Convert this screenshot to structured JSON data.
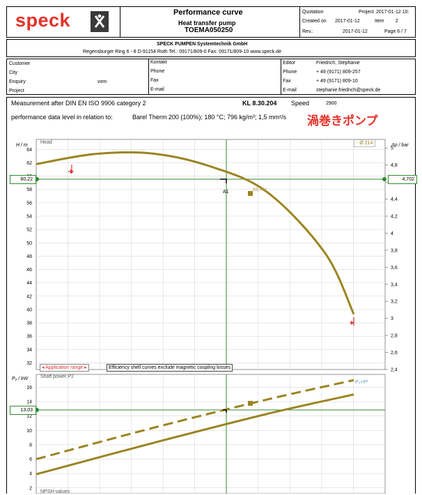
{
  "header": {
    "logo": "speck",
    "title": "Performance curve",
    "subtitle": "Heat transfer pump",
    "doc_id": "TOEMA050250",
    "quotation_label": "Quotation",
    "project_label": "Project",
    "project_value": "2017-01-12 10:",
    "created_label": "Created on",
    "created_value": "2017-01-12",
    "item_label": "Item",
    "item_value": "2",
    "rev_label": "Rev.:",
    "rev_value": "2017-01-12",
    "page_label": "Page 6 / 7"
  },
  "company": {
    "name": "SPECK PUMPEN Systemtechnik GmbH",
    "address": "Regensburger Ring 6 - 8   D-91154 Roth   Tel.: 09171/809-0   Fax: 09171/809-10   www.speck.de"
  },
  "info": {
    "customer": "Customer",
    "city": "City",
    "enquiry": "Enquiry",
    "enquiry_vom": "vom",
    "project": "Project",
    "kontakt": "Kontakt",
    "phone": "Phone",
    "fax": "Fax",
    "email": "E-mail",
    "editor": "Editor",
    "editor_value": "Friedrich, Stephanie",
    "phone2": "Phone",
    "phone2_value": "+ 49 (9171) 809-257",
    "fax2": "Fax",
    "fax2_value": "+ 49 (9171) 809-10",
    "email2": "E-mail",
    "email2_value": "stephanie.friedrich@speck.de"
  },
  "measurement": {
    "text": "Measurement after DIN EN ISO 9906 category 2",
    "kl": "KL 8.30.204",
    "speed_label": "Speed",
    "speed_value": "2900",
    "perf_label": "performance data level in relation to:",
    "perf_value": "Barel Therm 200 (100%); 180 °C; 796 kg/m³; 1,5 mm²/s",
    "jp_label": "渦巻きポンプ"
  },
  "chart_head": {
    "ylabel_left": "H / m",
    "ylabel_right": "Δp / bar",
    "curve_label": "Head",
    "legend": "- Ø 214",
    "op_left": "60,22",
    "op_right": "4,702",
    "eff_label": "68,4%",
    "point_label": "A1",
    "app_range": "Application range",
    "note": "Efficiency shell curves exclude magnetic coupling losses",
    "yticks_left": [
      "64",
      "62",
      "60",
      "58",
      "56",
      "54",
      "52",
      "50",
      "48",
      "46",
      "44",
      "42",
      "40",
      "38",
      "36",
      "34",
      "32"
    ],
    "yticks_right": [
      "5",
      "4,8",
      "4,6",
      "4,4",
      "4,2",
      "4",
      "3,8",
      "3,6",
      "3,4",
      "3,2",
      "3",
      "2,8",
      "2,6",
      "2,4"
    ]
  },
  "chart_power": {
    "ylabel_left": "P₂ / kW",
    "curve_label": "Shaft power P2",
    "legend": "P₂+P¹",
    "op_left": "13,03",
    "yticks_left": [
      "16",
      "14",
      "12",
      "10",
      "8",
      "6",
      "4",
      "2"
    ],
    "bottom_label": "NPSH-values"
  },
  "chart_data": [
    {
      "type": "line",
      "title": "Head",
      "ylabel": "H / m",
      "y2label": "Δp / bar",
      "ylim": [
        31,
        65.5
      ],
      "y2lim": [
        2.4,
        5.1
      ],
      "series": [
        {
          "name": "Ø 214",
          "x": [
            0,
            0.5,
            1,
            1.5,
            2,
            2.5,
            2.75
          ],
          "y": [
            61.8,
            63.3,
            63.4,
            61.5,
            57.6,
            48.5,
            39.3
          ]
        }
      ],
      "operating_point": {
        "name": "A1",
        "y": 60.22,
        "y2": 4.702
      },
      "efficiency_point": {
        "label": "68,4%",
        "y": 58
      }
    },
    {
      "type": "line",
      "title": "Shaft power P2",
      "ylabel": "P₂ / kW",
      "ylim": [
        1.2,
        17.8
      ],
      "series": [
        {
          "name": "P₂",
          "x": [
            0,
            1,
            2,
            2.75
          ],
          "y": [
            3.9,
            8.2,
            12.3,
            15
          ]
        },
        {
          "name": "P₂+P¹",
          "x": [
            0,
            1,
            2,
            2.75
          ],
          "y": [
            6,
            10.3,
            14.3,
            17
          ]
        }
      ],
      "operating_point": {
        "y": 13.03
      }
    }
  ]
}
